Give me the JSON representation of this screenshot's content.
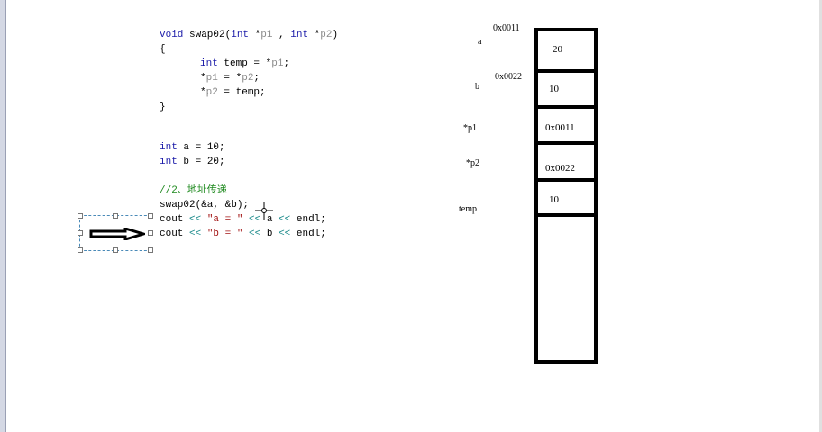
{
  "code": {
    "lines": [
      {
        "parts": [
          "void",
          " swap02(",
          "int",
          " *",
          "p1",
          " , ",
          "int",
          " *",
          "p2",
          ")"
        ]
      },
      "{",
      {
        "indent": true,
        "parts": [
          "int",
          " temp = *",
          "p1",
          ";"
        ]
      },
      {
        "indent": true,
        "parts": [
          "*",
          "p1",
          " = *",
          "p2",
          ";"
        ]
      },
      {
        "indent": true,
        "parts": [
          "*",
          "p2",
          " = temp;"
        ]
      },
      "}",
      {
        "parts": [
          "int",
          " a = 10;"
        ]
      },
      {
        "parts": [
          "int",
          " b = 20;"
        ]
      },
      "//2、地址传递",
      "swap02(&a, &b);",
      {
        "parts": [
          "cout ",
          "<<",
          " ",
          "\"a = \"",
          " ",
          "<<",
          " a ",
          "<<",
          " endl;"
        ]
      },
      {
        "parts": [
          "cout ",
          "<<",
          " ",
          "\"b = \"",
          " ",
          "<<",
          " b ",
          "<<",
          " endl;"
        ]
      }
    ]
  },
  "memory": {
    "addr_a": "0x0011",
    "addr_b": "0x0022",
    "cells": [
      {
        "label": "a",
        "value": "20"
      },
      {
        "label": "b",
        "value": "10"
      },
      {
        "label": "*p1",
        "value": "0x0011"
      },
      {
        "label": "*p2",
        "value": "0x0022"
      },
      {
        "label": "temp",
        "value": "10"
      },
      {
        "label": "",
        "value": ""
      }
    ]
  },
  "colors": {
    "keyword": "#1a1aa8",
    "string": "#a31515",
    "comment": "#1f8a1f",
    "operator": "#1a8a8a"
  }
}
